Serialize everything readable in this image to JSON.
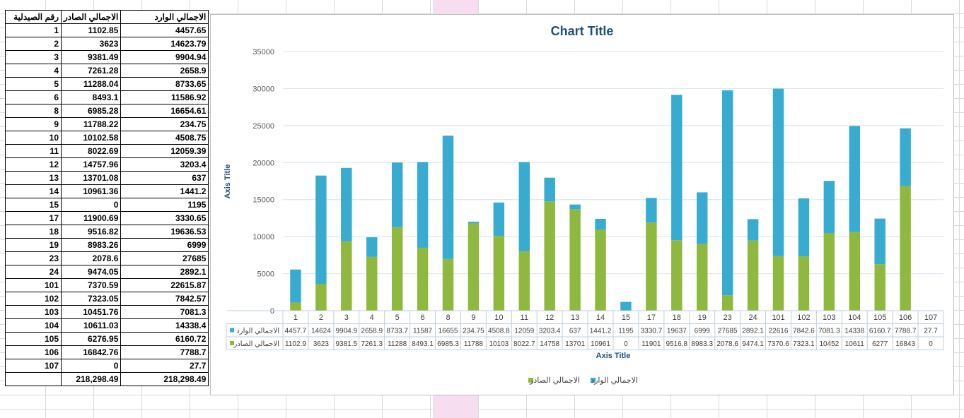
{
  "sheet": {
    "headers": [
      "رقم الصيدلية",
      "الاجمالي الصادر",
      "الاجمالي الوارد"
    ],
    "rows": [
      [
        "1",
        "1102.85",
        "4457.65"
      ],
      [
        "2",
        "3623",
        "14623.79"
      ],
      [
        "3",
        "9381.49",
        "9904.94"
      ],
      [
        "4",
        "7261.28",
        "2658.9"
      ],
      [
        "5",
        "11288.04",
        "8733.65"
      ],
      [
        "6",
        "8493.1",
        "11586.92"
      ],
      [
        "8",
        "6985.28",
        "16654.61"
      ],
      [
        "9",
        "11788.22",
        "234.75"
      ],
      [
        "10",
        "10102.58",
        "4508.75"
      ],
      [
        "11",
        "8022.69",
        "12059.39"
      ],
      [
        "12",
        "14757.96",
        "3203.4"
      ],
      [
        "13",
        "13701.08",
        "637"
      ],
      [
        "14",
        "10961.36",
        "1441.2"
      ],
      [
        "15",
        "0",
        "1195"
      ],
      [
        "17",
        "11900.69",
        "3330.65"
      ],
      [
        "18",
        "9516.82",
        "19636.53"
      ],
      [
        "19",
        "8983.26",
        "6999"
      ],
      [
        "23",
        "2078.6",
        "27685"
      ],
      [
        "24",
        "9474.05",
        "2892.1"
      ],
      [
        "101",
        "7370.59",
        "22615.87"
      ],
      [
        "102",
        "7323.05",
        "7842.57"
      ],
      [
        "103",
        "10451.76",
        "7081.3"
      ],
      [
        "104",
        "10611.03",
        "14338.4"
      ],
      [
        "105",
        "6276.95",
        "6160.72"
      ],
      [
        "106",
        "16842.76",
        "7788.7"
      ],
      [
        "107",
        "0",
        "27.7"
      ]
    ],
    "totals": [
      "",
      "218,298.49",
      "218,298.49"
    ]
  },
  "chart_data": {
    "type": "bar",
    "stacked": true,
    "title": "Chart Title",
    "xlabel": "Axis Title",
    "ylabel": "Axis Title",
    "ylim": [
      0,
      35000
    ],
    "yticks": [
      0,
      5000,
      10000,
      15000,
      20000,
      25000,
      30000,
      35000
    ],
    "grid": true,
    "legend": "bottom",
    "categories": [
      "1",
      "2",
      "3",
      "4",
      "5",
      "6",
      "8",
      "9",
      "10",
      "11",
      "12",
      "13",
      "14",
      "15",
      "17",
      "18",
      "19",
      "23",
      "24",
      "101",
      "102",
      "103",
      "104",
      "105",
      "106",
      "107"
    ],
    "series": [
      {
        "name": "الاجمالي الصادر",
        "color": "#8fb83f",
        "values": [
          1102.85,
          3623,
          9381.49,
          7261.28,
          11288.04,
          8493.1,
          6985.28,
          11788.22,
          10102.58,
          8022.69,
          14757.96,
          13701.08,
          10961.36,
          0,
          11900.69,
          9516.82,
          8983.26,
          2078.6,
          9474.05,
          7370.59,
          7323.05,
          10451.76,
          10611.03,
          6276.95,
          16842.76,
          0
        ],
        "table_labels": [
          "1102.9",
          "3623",
          "9381.5",
          "7261.3",
          "11288",
          "8493.1",
          "6985.3",
          "11788",
          "10103",
          "8022.7",
          "14758",
          "13701",
          "10961",
          "0",
          "11901",
          "9516.8",
          "8983.3",
          "2078.6",
          "9474.1",
          "7370.6",
          "7323.1",
          "10452",
          "10611",
          "6277",
          "16843",
          "0"
        ]
      },
      {
        "name": "الاجمالي الوارد",
        "color": "#38acd0",
        "values": [
          4457.65,
          14623.79,
          9904.94,
          2658.9,
          8733.65,
          11586.92,
          16654.61,
          234.75,
          4508.75,
          12059.39,
          3203.4,
          637,
          1441.2,
          1195,
          3330.65,
          19636.53,
          6999,
          27685,
          2892.1,
          22615.87,
          7842.57,
          7081.3,
          14338.4,
          6160.72,
          7788.7,
          27.7
        ],
        "table_labels": [
          "4457.7",
          "14624",
          "9904.9",
          "2658.9",
          "8733.7",
          "11587",
          "16655",
          "234.75",
          "4508.8",
          "12059",
          "3203.4",
          "637",
          "1441.2",
          "1195",
          "3330.7",
          "19637",
          "6999",
          "27685",
          "2892.1",
          "22616",
          "7842.6",
          "7081.3",
          "14338",
          "6160.7",
          "7788.7",
          "27.7"
        ]
      }
    ]
  }
}
